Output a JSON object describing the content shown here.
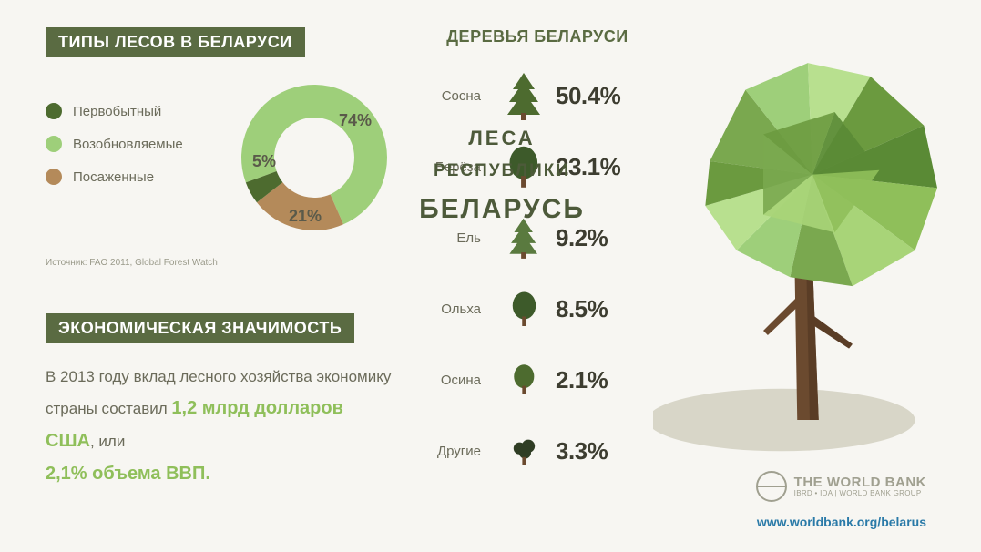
{
  "background_color": "#f7f6f2",
  "header_bg": "#5a6b42",
  "header_fg": "#ffffff",
  "text_color": "#6b6b5a",
  "highlight_color": "#8fbf5a",
  "forest_types": {
    "title": "ТИПЫ ЛЕСОВ В БЕЛАРУСИ",
    "donut": {
      "type": "donut",
      "inner_radius_pct": 55,
      "slices": [
        {
          "label": "Первобытный",
          "value": 5,
          "display": "5%",
          "color": "#4d6b2f"
        },
        {
          "label": "Возобновляемые",
          "value": 74,
          "display": "74%",
          "color": "#9ecf7a"
        },
        {
          "label": "Посаженные",
          "value": 21,
          "display": "21%",
          "color": "#b48a5a"
        }
      ]
    },
    "source": "Источник: FAO 2011, Global Forest Watch"
  },
  "trees": {
    "title": "ДЕРЕВЬЯ БЕЛАРУСИ",
    "items": [
      {
        "label": "Сосна",
        "pct": "50.4%",
        "icon": "pine",
        "color": "#4d6b2f"
      },
      {
        "label": "Берёза",
        "pct": "23.1%",
        "icon": "birch",
        "color": "#3d5a2a"
      },
      {
        "label": "Ель",
        "pct": "9.2%",
        "icon": "spruce",
        "color": "#5a7a3f"
      },
      {
        "label": "Ольха",
        "pct": "8.5%",
        "icon": "alder",
        "color": "#3d5a2a"
      },
      {
        "label": "Осина",
        "pct": "2.1%",
        "icon": "aspen",
        "color": "#4d6b2f"
      },
      {
        "label": "Другие",
        "pct": "3.3%",
        "icon": "other",
        "color": "#2f3d24"
      }
    ]
  },
  "economy": {
    "title": "ЭКОНОМИЧЕСКАЯ ЗНАЧИМОСТЬ",
    "line1_a": "В 2013 году вклад лесного хозяйства экономику",
    "line2_a": "страны составил ",
    "line2_b": "1,2 млрд долларов США",
    "line2_c": ", или ",
    "line3_a": "2,1% объема ВВП.",
    "line3_b": ""
  },
  "main_graphic": {
    "title_line1": "ЛЕСА",
    "title_line2": "РЕСПУБЛИКИ",
    "title_line3": "БЕЛАРУСЬ",
    "crown_colors": [
      "#7aa84f",
      "#9ecf7a",
      "#b8e08f",
      "#6b9a3f",
      "#5a8a35",
      "#8fbf5a",
      "#a8d478"
    ],
    "trunk_color": "#6b4a2f",
    "shadow_color": "#d8d6c8"
  },
  "branding": {
    "org_main": "THE WORLD BANK",
    "org_sub": "IBRD • IDA | WORLD BANK GROUP",
    "url": "www.worldbank.org/belarus",
    "url_color": "#2a7aa8",
    "logo_color": "#a0a090"
  }
}
